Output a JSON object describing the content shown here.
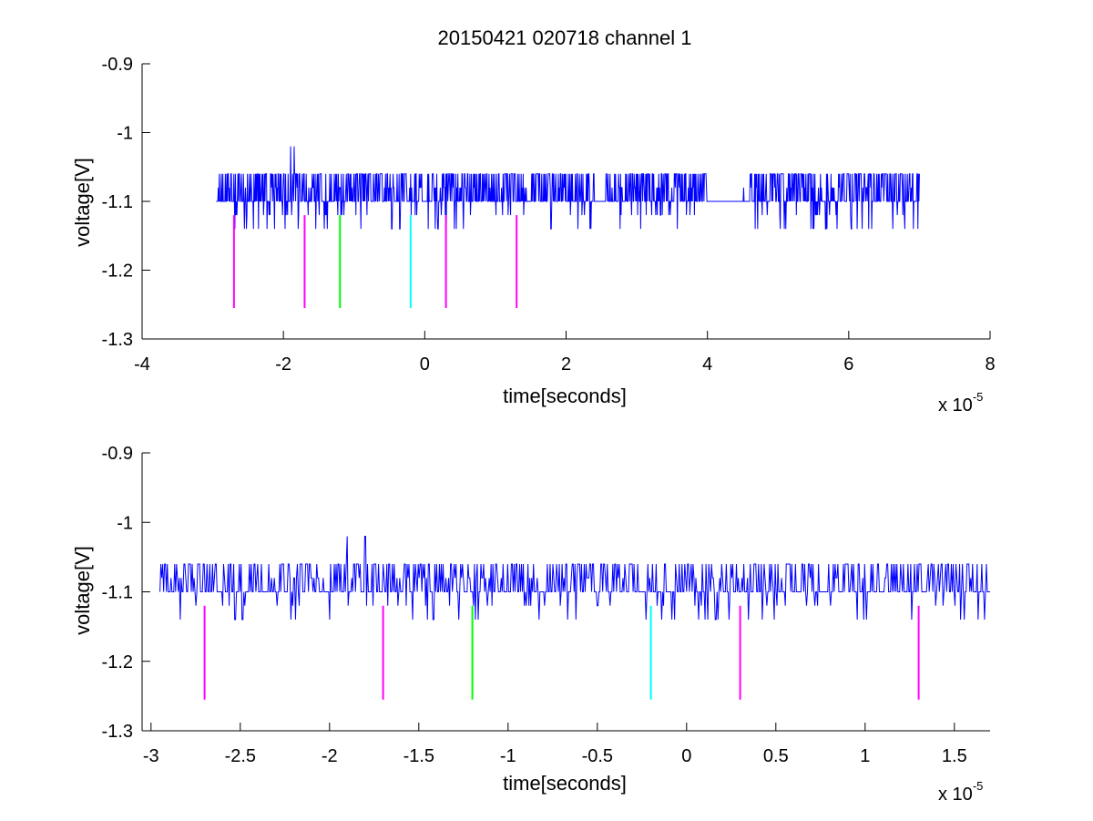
{
  "chart_data": [
    {
      "type": "line",
      "title": "20150421 020718 channel 1",
      "xlabel": "time[seconds]",
      "ylabel": "voltage[V]",
      "x_multiplier_base": "x 10",
      "x_multiplier_exp": "-5",
      "xlim": [
        -4,
        8
      ],
      "ylim": [
        -1.3,
        -0.9
      ],
      "xticks": [
        -4,
        -2,
        0,
        2,
        4,
        6,
        8
      ],
      "xtick_labels": [
        "-4",
        "-2",
        "0",
        "2",
        "4",
        "6",
        "8"
      ],
      "yticks": [
        -1.3,
        -1.2,
        -1.1,
        -1.0,
        -0.9
      ],
      "ytick_labels": [
        "-1.3",
        "-1.2",
        "-1.1",
        "-1",
        "-0.9"
      ],
      "grid": false,
      "signal": {
        "color": "#0000ff",
        "x_start": -2.95,
        "x_end": 7.0,
        "baseline": -1.1,
        "levels": [
          -1.14,
          -1.12,
          -1.1,
          -1.08,
          -1.06,
          -1.02
        ],
        "spikes": [
          {
            "x": -1.9,
            "y": -1.02
          },
          {
            "x": -1.85,
            "y": -1.02
          }
        ]
      },
      "markers": [
        {
          "x": -2.7,
          "color": "#ff00ff",
          "y_top": -1.12,
          "y_bottom": -1.255
        },
        {
          "x": -1.7,
          "color": "#ff00ff",
          "y_top": -1.12,
          "y_bottom": -1.255
        },
        {
          "x": -1.2,
          "color": "#00ff00",
          "y_top": -1.12,
          "y_bottom": -1.255
        },
        {
          "x": -0.2,
          "color": "#00ffff",
          "y_top": -1.12,
          "y_bottom": -1.255
        },
        {
          "x": 0.3,
          "color": "#ff00ff",
          "y_top": -1.12,
          "y_bottom": -1.255
        },
        {
          "x": 1.3,
          "color": "#ff00ff",
          "y_top": -1.12,
          "y_bottom": -1.255
        }
      ]
    },
    {
      "type": "line",
      "title": "",
      "xlabel": "time[seconds]",
      "ylabel": "voltage[V]",
      "x_multiplier_base": "x 10",
      "x_multiplier_exp": "-5",
      "xlim": [
        -3.05,
        1.7
      ],
      "ylim": [
        -1.3,
        -0.9
      ],
      "xticks": [
        -3,
        -2.5,
        -2,
        -1.5,
        -1,
        -0.5,
        0,
        0.5,
        1,
        1.5
      ],
      "xtick_labels": [
        "-3",
        "-2.5",
        "-2",
        "-1.5",
        "-1",
        "-0.5",
        "0",
        "0.5",
        "1",
        "1.5"
      ],
      "yticks": [
        -1.3,
        -1.2,
        -1.1,
        -1.0,
        -0.9
      ],
      "ytick_labels": [
        "-1.3",
        "-1.2",
        "-1.1",
        "-1",
        "-0.9"
      ],
      "grid": false,
      "signal": {
        "color": "#0000ff",
        "x_start": -2.95,
        "x_end": 1.7,
        "baseline": -1.1,
        "levels": [
          -1.14,
          -1.12,
          -1.1,
          -1.08,
          -1.06,
          -1.02
        ],
        "spikes": [
          {
            "x": -1.9,
            "y": -1.02
          },
          {
            "x": -1.8,
            "y": -1.02
          }
        ]
      },
      "markers": [
        {
          "x": -2.7,
          "color": "#ff00ff",
          "y_top": -1.12,
          "y_bottom": -1.255
        },
        {
          "x": -1.7,
          "color": "#ff00ff",
          "y_top": -1.12,
          "y_bottom": -1.255
        },
        {
          "x": -1.2,
          "color": "#00ff00",
          "y_top": -1.12,
          "y_bottom": -1.255
        },
        {
          "x": -0.2,
          "color": "#00ffff",
          "y_top": -1.12,
          "y_bottom": -1.255
        },
        {
          "x": 0.3,
          "color": "#ff00ff",
          "y_top": -1.12,
          "y_bottom": -1.255
        },
        {
          "x": 1.3,
          "color": "#ff00ff",
          "y_top": -1.12,
          "y_bottom": -1.255
        }
      ]
    }
  ]
}
